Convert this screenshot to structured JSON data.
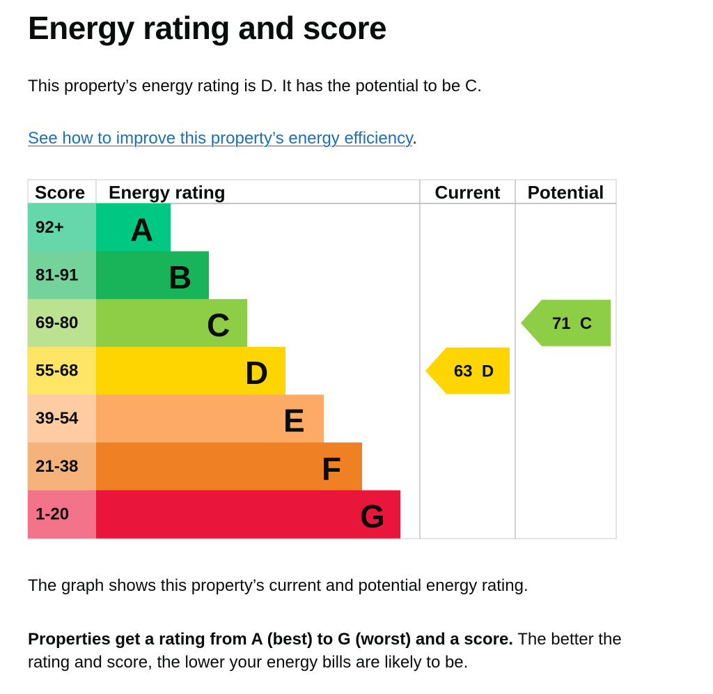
{
  "page": {
    "title": "Energy rating and score",
    "intro": "This property’s energy rating is D. It has the potential to be C.",
    "improve_link": "See how to improve this property’s energy efficiency",
    "improve_after": ".",
    "graph_caption": "The graph shows this property’s current and potential energy rating.",
    "rating_explainer_bold": "Properties get a rating from A (best) to G (worst) and a score.",
    "rating_explainer_rest": " The better the rating and score, the lower your energy bills are likely to be."
  },
  "chart_data": {
    "type": "table",
    "columns": [
      "Score",
      "Energy rating",
      "Current",
      "Potential"
    ],
    "bands": [
      {
        "score": "92+",
        "rating": "A",
        "color": "#00c781",
        "score_color": "#66d6ab",
        "order": 1
      },
      {
        "score": "81-91",
        "rating": "B",
        "color": "#19b459",
        "score_color": "#74d29b",
        "order": 2
      },
      {
        "score": "69-80",
        "rating": "C",
        "color": "#8dce46",
        "score_color": "#bbe291",
        "order": 3
      },
      {
        "score": "55-68",
        "rating": "D",
        "color": "#ffd500",
        "score_color": "#ffe566",
        "order": 4
      },
      {
        "score": "39-54",
        "rating": "E",
        "color": "#fcaa65",
        "score_color": "#fdcca3",
        "order": 5
      },
      {
        "score": "21-38",
        "rating": "F",
        "color": "#ef8023",
        "score_color": "#f5b37b",
        "order": 6
      },
      {
        "score": "1-20",
        "rating": "G",
        "color": "#e9153b",
        "score_color": "#f2738a",
        "order": 7
      }
    ],
    "current": {
      "score": 63,
      "rating": "D",
      "label": "63  D",
      "color": "#ffd500"
    },
    "potential": {
      "score": 71,
      "rating": "C",
      "label": "71  C",
      "color": "#8dce46"
    }
  }
}
